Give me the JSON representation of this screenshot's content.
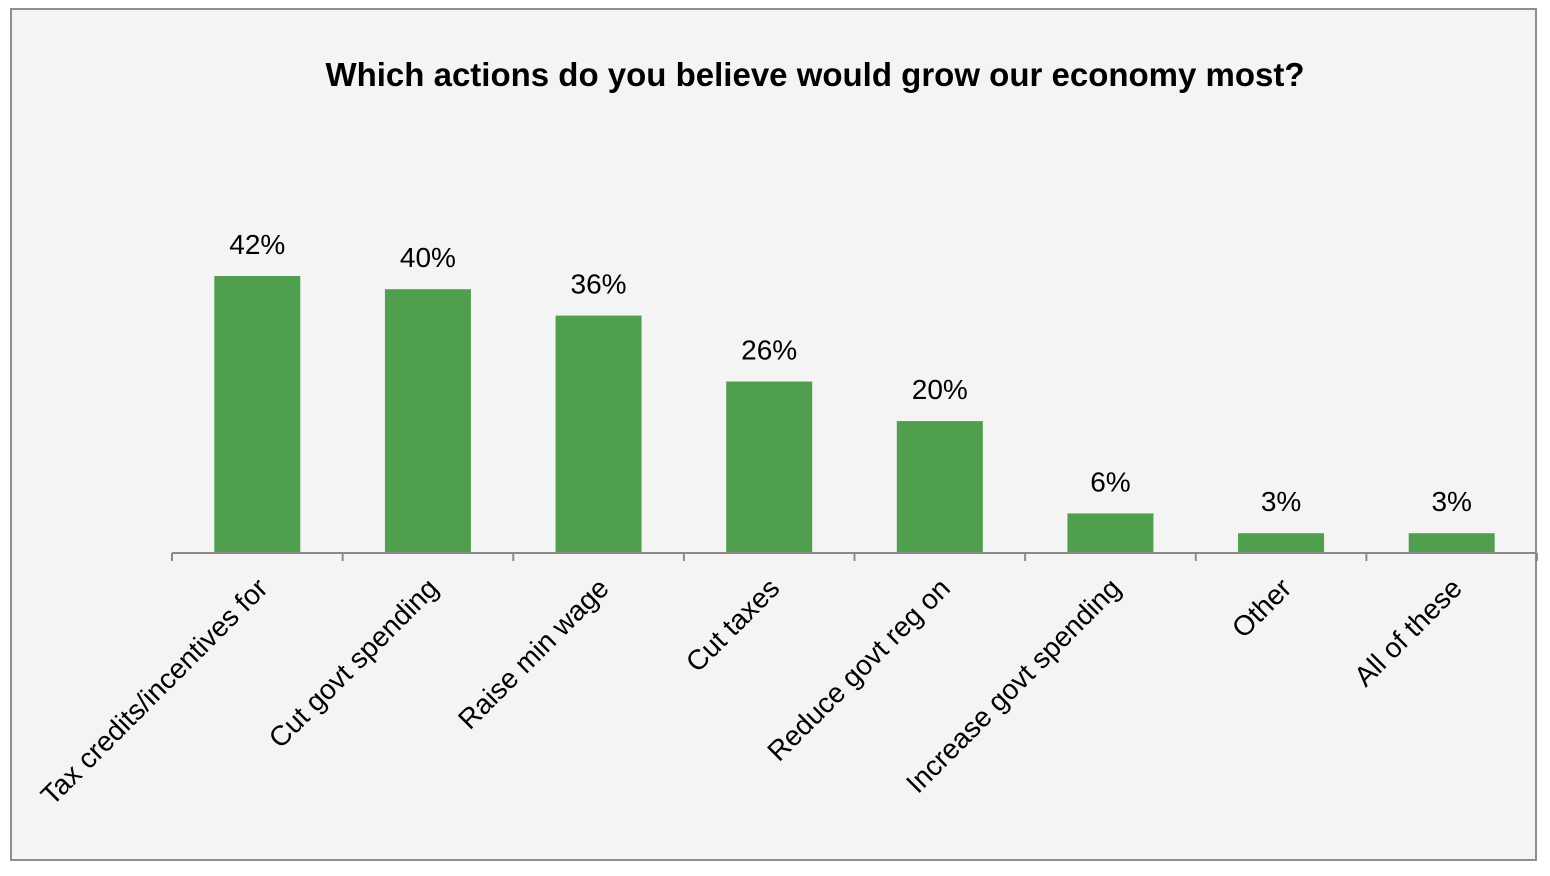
{
  "chart_data": {
    "type": "bar",
    "title": "Which actions do you believe would grow our economy most?",
    "categories": [
      "Tax credits/incentives for",
      "Cut govt spending",
      "Raise min wage",
      "Cut taxes",
      "Reduce govt reg on",
      "Increase govt spending",
      "Other",
      "All of these"
    ],
    "values": [
      42,
      40,
      36,
      26,
      20,
      6,
      3,
      3
    ],
    "value_labels": [
      "42%",
      "40%",
      "36%",
      "26%",
      "20%",
      "6%",
      "3%",
      "3%"
    ],
    "unit": "%",
    "xlabel": "",
    "ylabel": "",
    "ylim": [
      0,
      50
    ],
    "grid": false,
    "legend": "none",
    "bar_color": "#4f9f4f"
  }
}
